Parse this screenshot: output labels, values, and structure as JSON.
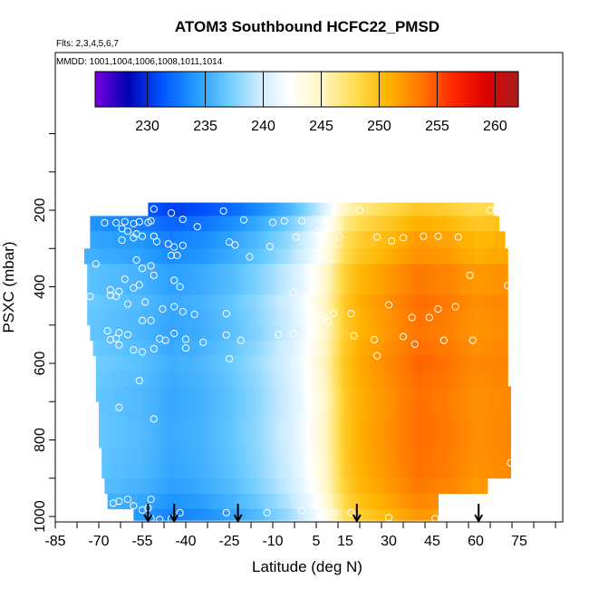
{
  "chart_data": {
    "type": "heatmap",
    "title": "ATOM3 Southbound HCFC22_PMSD",
    "flights_label": "Flts: 2,3,4,5,6,7",
    "mmdd_label": "MMDD: 1001,1004,1006,1008,1011,1014",
    "xlabel": "Latitude (deg N)",
    "ylabel": "PSXC (mbar)",
    "xlim": [
      -85,
      90
    ],
    "ylim": [
      1010,
      0
    ],
    "x_ticks": [
      -85,
      -70,
      -55,
      -40,
      -25,
      -10,
      5,
      15,
      30,
      45,
      60,
      75
    ],
    "y_ticks": [
      200,
      400,
      600,
      800,
      1000
    ],
    "colorbar": {
      "min": 225.5,
      "max": 262,
      "ticks": [
        230,
        235,
        240,
        245,
        250,
        255,
        260
      ],
      "colors": [
        "#7a00e0",
        "#0000b4",
        "#0050ff",
        "#1e96ff",
        "#64c8ff",
        "#c8ebff",
        "#ffffff",
        "#fff5c0",
        "#ffdc50",
        "#ffb400",
        "#ff7800",
        "#ff2800",
        "#dc0000",
        "#aa1e1e"
      ]
    },
    "rows": [
      {
        "p_top": 180,
        "p_bot": 215,
        "lat_min": -53,
        "lat_max": 66
      },
      {
        "p_top": 215,
        "p_bot": 255,
        "lat_min": -73,
        "lat_max": 68
      },
      {
        "p_top": 255,
        "p_bot": 300,
        "lat_min": -73,
        "lat_max": 70
      },
      {
        "p_top": 300,
        "p_bot": 340,
        "lat_min": -75,
        "lat_max": 71
      },
      {
        "p_top": 340,
        "p_bot": 380,
        "lat_min": -74,
        "lat_max": 71
      },
      {
        "p_top": 380,
        "p_bot": 420,
        "lat_min": -74,
        "lat_max": 71
      },
      {
        "p_top": 420,
        "p_bot": 460,
        "lat_min": -74,
        "lat_max": 71
      },
      {
        "p_top": 460,
        "p_bot": 500,
        "lat_min": -74,
        "lat_max": 71
      },
      {
        "p_top": 500,
        "p_bot": 540,
        "lat_min": -73,
        "lat_max": 71
      },
      {
        "p_top": 540,
        "p_bot": 580,
        "lat_min": -72,
        "lat_max": 71
      },
      {
        "p_top": 580,
        "p_bot": 620,
        "lat_min": -71,
        "lat_max": 71
      },
      {
        "p_top": 620,
        "p_bot": 660,
        "lat_min": -71,
        "lat_max": 71
      },
      {
        "p_top": 660,
        "p_bot": 700,
        "lat_min": -71,
        "lat_max": 72
      },
      {
        "p_top": 700,
        "p_bot": 740,
        "lat_min": -70,
        "lat_max": 72
      },
      {
        "p_top": 740,
        "p_bot": 780,
        "lat_min": -70,
        "lat_max": 72
      },
      {
        "p_top": 780,
        "p_bot": 820,
        "lat_min": -70,
        "lat_max": 72
      },
      {
        "p_top": 820,
        "p_bot": 860,
        "lat_min": -69,
        "lat_max": 72
      },
      {
        "p_top": 860,
        "p_bot": 900,
        "lat_min": -69,
        "lat_max": 72
      },
      {
        "p_top": 900,
        "p_bot": 940,
        "lat_min": -68,
        "lat_max": 64
      },
      {
        "p_top": 940,
        "p_bot": 980,
        "lat_min": -67,
        "lat_max": 47
      },
      {
        "p_top": 980,
        "p_bot": 1010,
        "lat_min": -58,
        "lat_max": 47
      }
    ],
    "profile": [
      {
        "lat": -75,
        "value": 236.5
      },
      {
        "lat": -65,
        "value": 236
      },
      {
        "lat": -55,
        "value": 235.5
      },
      {
        "lat": -45,
        "value": 234.5
      },
      {
        "lat": -35,
        "value": 235
      },
      {
        "lat": -25,
        "value": 236
      },
      {
        "lat": -15,
        "value": 237.5
      },
      {
        "lat": -5,
        "value": 239.5
      },
      {
        "lat": 0,
        "value": 241
      },
      {
        "lat": 5,
        "value": 243
      },
      {
        "lat": 9,
        "value": 245
      },
      {
        "lat": 12,
        "value": 247
      },
      {
        "lat": 15,
        "value": 249
      },
      {
        "lat": 20,
        "value": 250.5
      },
      {
        "lat": 30,
        "value": 252
      },
      {
        "lat": 40,
        "value": 253.5
      },
      {
        "lat": 50,
        "value": 253
      },
      {
        "lat": 60,
        "value": 252
      },
      {
        "lat": 72,
        "value": 252.5
      }
    ],
    "row_offsets": [
      -4,
      -2.5,
      -1.5,
      -1,
      0,
      0,
      0.5,
      0.3,
      0.2,
      0.5,
      0.8,
      0.6,
      0.4,
      0.4,
      0.5,
      0.5,
      0.4,
      0.3,
      0,
      -0.6,
      -1.4
    ],
    "samples": [
      {
        "lat": -51,
        "p": 197
      },
      {
        "lat": -45,
        "p": 207
      },
      {
        "lat": -41,
        "p": 224
      },
      {
        "lat": -52,
        "p": 228
      },
      {
        "lat": -27,
        "p": 202
      },
      {
        "lat": -20,
        "p": 225
      },
      {
        "lat": 20,
        "p": 200
      },
      {
        "lat": 65,
        "p": 200
      },
      {
        "lat": -75,
        "p": 230
      },
      {
        "lat": -68,
        "p": 233
      },
      {
        "lat": -64,
        "p": 233
      },
      {
        "lat": -61,
        "p": 230
      },
      {
        "lat": -58,
        "p": 235
      },
      {
        "lat": -56,
        "p": 230
      },
      {
        "lat": -53,
        "p": 232
      },
      {
        "lat": -36,
        "p": 243
      },
      {
        "lat": -6,
        "p": 228
      },
      {
        "lat": -10,
        "p": 232
      },
      {
        "lat": 0,
        "p": 228
      },
      {
        "lat": -62,
        "p": 248
      },
      {
        "lat": -60,
        "p": 255
      },
      {
        "lat": -57,
        "p": 262
      },
      {
        "lat": -58,
        "p": 272
      },
      {
        "lat": -62,
        "p": 278
      },
      {
        "lat": -55,
        "p": 268
      },
      {
        "lat": -51,
        "p": 268
      },
      {
        "lat": -50,
        "p": 282
      },
      {
        "lat": -46,
        "p": 288
      },
      {
        "lat": -44,
        "p": 296
      },
      {
        "lat": -41,
        "p": 292
      },
      {
        "lat": -25,
        "p": 283
      },
      {
        "lat": -23,
        "p": 291
      },
      {
        "lat": -11,
        "p": 295
      },
      {
        "lat": -2,
        "p": 270
      },
      {
        "lat": 5,
        "p": 258
      },
      {
        "lat": 9,
        "p": 258
      },
      {
        "lat": 13,
        "p": 268
      },
      {
        "lat": 26,
        "p": 270
      },
      {
        "lat": 31,
        "p": 280
      },
      {
        "lat": 35,
        "p": 272
      },
      {
        "lat": 42,
        "p": 268
      },
      {
        "lat": 47,
        "p": 268
      },
      {
        "lat": 54,
        "p": 270
      },
      {
        "lat": -45,
        "p": 318
      },
      {
        "lat": -43,
        "p": 318
      },
      {
        "lat": -18,
        "p": 322
      },
      {
        "lat": -57,
        "p": 330
      },
      {
        "lat": -71,
        "p": 340
      },
      {
        "lat": -52,
        "p": 345
      },
      {
        "lat": -55,
        "p": 352
      },
      {
        "lat": -51,
        "p": 370
      },
      {
        "lat": -61,
        "p": 380
      },
      {
        "lat": -77,
        "p": 370
      },
      {
        "lat": -44,
        "p": 383
      },
      {
        "lat": -56,
        "p": 395
      },
      {
        "lat": -58,
        "p": 403
      },
      {
        "lat": -66,
        "p": 408
      },
      {
        "lat": -63,
        "p": 412
      },
      {
        "lat": -66,
        "p": 422
      },
      {
        "lat": -64,
        "p": 425
      },
      {
        "lat": -42,
        "p": 400
      },
      {
        "lat": -3,
        "p": 415
      },
      {
        "lat": 58,
        "p": 370
      },
      {
        "lat": 71,
        "p": 397
      },
      {
        "lat": 30,
        "p": 447
      },
      {
        "lat": -73,
        "p": 425
      },
      {
        "lat": -54,
        "p": 440
      },
      {
        "lat": -60,
        "p": 445
      },
      {
        "lat": -44,
        "p": 452
      },
      {
        "lat": -48,
        "p": 458
      },
      {
        "lat": -41,
        "p": 465
      },
      {
        "lat": -37,
        "p": 472
      },
      {
        "lat": -52,
        "p": 488
      },
      {
        "lat": -55,
        "p": 488
      },
      {
        "lat": -26,
        "p": 470
      },
      {
        "lat": 1,
        "p": 465
      },
      {
        "lat": 8,
        "p": 480
      },
      {
        "lat": 9,
        "p": 490
      },
      {
        "lat": 11,
        "p": 470
      },
      {
        "lat": 17,
        "p": 470
      },
      {
        "lat": 38,
        "p": 480
      },
      {
        "lat": 44,
        "p": 480
      },
      {
        "lat": 47,
        "p": 458
      },
      {
        "lat": 53,
        "p": 452
      },
      {
        "lat": -67,
        "p": 515
      },
      {
        "lat": -63,
        "p": 520
      },
      {
        "lat": -64,
        "p": 535
      },
      {
        "lat": -66,
        "p": 538
      },
      {
        "lat": -60,
        "p": 525
      },
      {
        "lat": -44,
        "p": 522
      },
      {
        "lat": -49,
        "p": 536
      },
      {
        "lat": -40,
        "p": 537
      },
      {
        "lat": -34,
        "p": 545
      },
      {
        "lat": -26,
        "p": 526
      },
      {
        "lat": -21,
        "p": 540
      },
      {
        "lat": -8,
        "p": 525
      },
      {
        "lat": -3,
        "p": 523
      },
      {
        "lat": 1,
        "p": 534
      },
      {
        "lat": 18,
        "p": 528
      },
      {
        "lat": 25,
        "p": 538
      },
      {
        "lat": 35,
        "p": 530
      },
      {
        "lat": -76,
        "p": 556
      },
      {
        "lat": -63,
        "p": 552
      },
      {
        "lat": -58,
        "p": 565
      },
      {
        "lat": -55,
        "p": 570
      },
      {
        "lat": -51,
        "p": 562
      },
      {
        "lat": -47,
        "p": 540
      },
      {
        "lat": -40,
        "p": 560
      },
      {
        "lat": 39,
        "p": 550
      },
      {
        "lat": 49,
        "p": 540
      },
      {
        "lat": 59,
        "p": 540
      },
      {
        "lat": 26,
        "p": 580
      },
      {
        "lat": -25,
        "p": 588
      },
      {
        "lat": -56,
        "p": 645
      },
      {
        "lat": -63,
        "p": 715
      },
      {
        "lat": -51,
        "p": 745
      },
      {
        "lat": -73,
        "p": 870
      },
      {
        "lat": -60,
        "p": 955
      },
      {
        "lat": -65,
        "p": 965
      },
      {
        "lat": -52,
        "p": 955
      },
      {
        "lat": -63,
        "p": 960
      },
      {
        "lat": -58,
        "p": 972
      },
      {
        "lat": -55,
        "p": 983
      },
      {
        "lat": -53,
        "p": 978
      },
      {
        "lat": -52,
        "p": 1005
      },
      {
        "lat": -49,
        "p": 1008
      },
      {
        "lat": -45,
        "p": 1005
      },
      {
        "lat": -42,
        "p": 990
      },
      {
        "lat": -26,
        "p": 990
      },
      {
        "lat": -12,
        "p": 990
      },
      {
        "lat": 0,
        "p": 985
      },
      {
        "lat": 6,
        "p": 990
      },
      {
        "lat": 11,
        "p": 990
      },
      {
        "lat": 17,
        "p": 990
      },
      {
        "lat": 30,
        "p": 1003
      },
      {
        "lat": 46,
        "p": 1005
      },
      {
        "lat": 51,
        "p": 955
      },
      {
        "lat": 72,
        "p": 860
      }
    ],
    "arrows": [
      -53,
      -44,
      -22,
      19,
      61
    ]
  }
}
